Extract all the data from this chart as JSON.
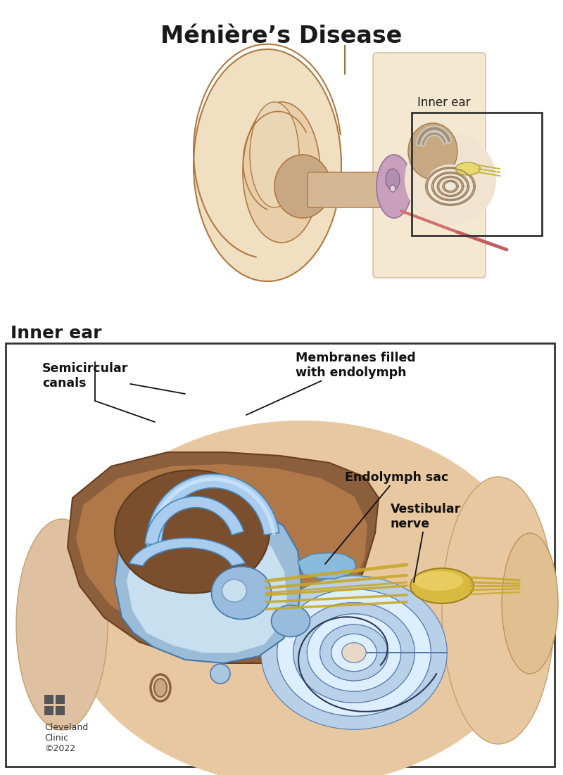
{
  "title": "Ménière’s Disease",
  "title_fontsize": 24,
  "title_fontweight": "bold",
  "bg_color": "#ffffff",
  "inner_ear_label_top": "Inner ear",
  "inner_ear_label_bottom": "Inner ear",
  "annotation_fontsize": 12.5,
  "cleveland_text": "Cleveland\nClinic\n©2022",
  "cleveland_fontsize": 9,
  "ear_skin": "#f0dfc0",
  "ear_skin2": "#e8cfaa",
  "ear_dark": "#c49a6c",
  "ear_line": "#b07840",
  "canal_brown": "#a06838",
  "canal_dark": "#7a4820",
  "head_skin": "#f5e8d0",
  "purple_me": "#c8a0c0",
  "purple_dark": "#9870a0",
  "cochlea_bg": "#f0e8d8",
  "cochlea_yellow": "#e8d870",
  "nerve_yellow": "#d4b830",
  "blue_light": "#b8d4ee",
  "blue_mid": "#8ab4d8",
  "blue_dark": "#5588aa",
  "brown_bone": "#8B5E3C",
  "brown_bone2": "#6b3e1e",
  "flesh_bg": "#e8c9a0"
}
